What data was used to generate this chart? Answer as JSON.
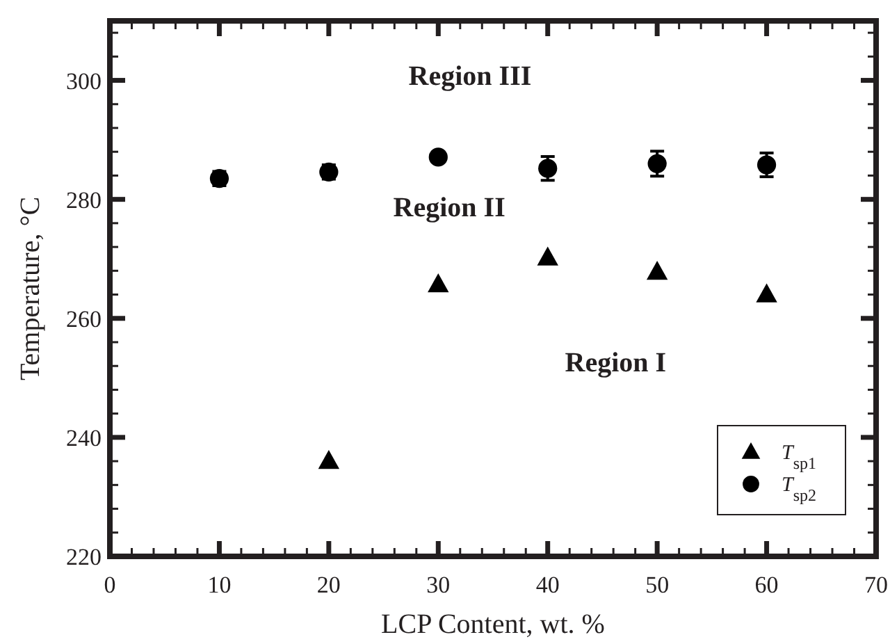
{
  "chart_data": {
    "type": "scatter",
    "xlabel": "LCP Content, wt. %",
    "ylabel": "Temperature, °C",
    "xlim": [
      0,
      70
    ],
    "xticks": [
      0,
      10,
      20,
      30,
      40,
      50,
      60,
      70
    ],
    "ylim": [
      220,
      310
    ],
    "yticks": [
      220,
      240,
      260,
      280,
      300
    ],
    "grid": false,
    "legend": "bottom right",
    "series": [
      {
        "name": "T$_{sp1}$",
        "color": "#000000",
        "marker": "triangle",
        "x": [
          20,
          30,
          40,
          50,
          60
        ],
        "values": [
          236,
          265.7,
          270.2,
          267.8,
          264
        ]
      },
      {
        "name": "T$_{sp2}$",
        "color": "#000000",
        "marker": "circle",
        "x": [
          10,
          20,
          30,
          40,
          50,
          60
        ],
        "values": [
          283.5,
          284.6,
          287.1,
          285.2,
          286,
          285.8
        ],
        "errors": [
          1.2,
          1.2,
          0.6,
          2,
          2.1,
          2
        ]
      }
    ],
    "annotations": [
      "Region III",
      "Region II",
      "Region I"
    ]
  }
}
